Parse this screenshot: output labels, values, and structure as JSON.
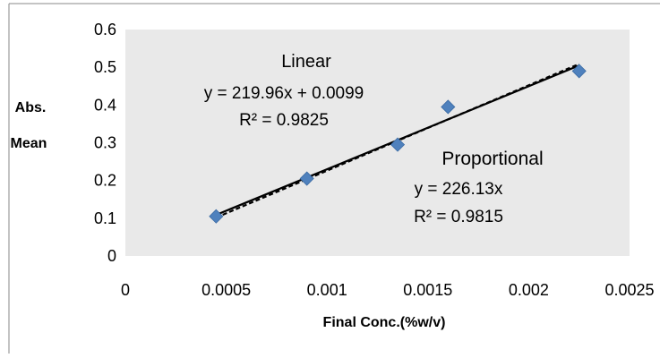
{
  "chart_data": {
    "type": "scatter",
    "xlabel": "Final Conc.(%w/v)",
    "ylabel_line1": "Abs.",
    "ylabel_line2": "Mean",
    "xlim": [
      0,
      0.0025
    ],
    "ylim": [
      0,
      0.6
    ],
    "x_ticks": [
      0,
      0.0005,
      0.001,
      0.0015,
      0.002,
      0.0025
    ],
    "x_tick_labels": [
      "0",
      "0.0005",
      "0.001",
      "0.0015",
      "0.002",
      "0.0025"
    ],
    "y_ticks": [
      0,
      0.1,
      0.2,
      0.3,
      0.4,
      0.5,
      0.6
    ],
    "y_tick_labels": [
      "0",
      "0.1",
      "0.2",
      "0.3",
      "0.4",
      "0.5",
      "0.6"
    ],
    "plot_background": "#e9e9e9",
    "points": {
      "x": [
        0.00045,
        0.0009,
        0.00135,
        0.0016,
        0.00225
      ],
      "y": [
        0.105,
        0.205,
        0.295,
        0.395,
        0.49
      ],
      "color": "#4f81bd",
      "marker": "diamond"
    },
    "trendlines": [
      {
        "style": "solid",
        "x_range": [
          0.00045,
          0.00225
        ],
        "slope": 219.96,
        "intercept": 0.0099
      },
      {
        "style": "dashed",
        "x_range": [
          0.00045,
          0.00225
        ],
        "slope": 226.13,
        "intercept": 0
      }
    ],
    "annotations": {
      "linear": {
        "title": "Linear",
        "equation": "y = 219.96x + 0.0099",
        "r2": "R² = 0.9825"
      },
      "proportional": {
        "title": "Proportional",
        "equation": "y = 226.13x",
        "r2": "R² = 0.9815"
      }
    }
  }
}
